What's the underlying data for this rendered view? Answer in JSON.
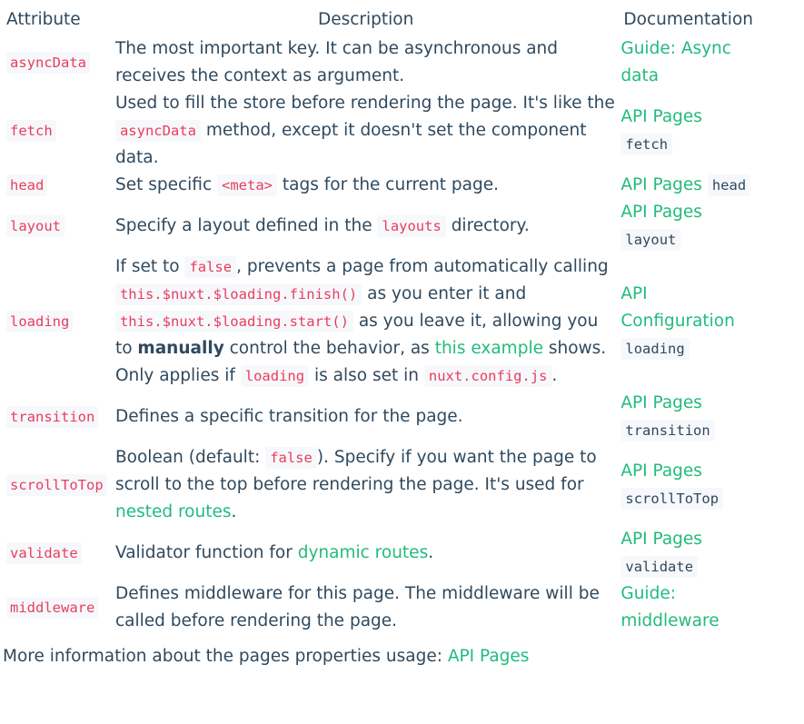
{
  "table": {
    "headers": {
      "attribute": "Attribute",
      "description": "Description",
      "documentation": "Documentation"
    },
    "rows": [
      {
        "attr": "asyncData",
        "desc": [
          {
            "t": "The most important key. It can be asynchronous and receives the context as argument."
          }
        ],
        "doc": [
          {
            "link": "Guide: Async data"
          }
        ]
      },
      {
        "attr": "fetch",
        "desc": [
          {
            "t": "Used to fill the store before rendering the page. It's like the "
          },
          {
            "code": "asyncData"
          },
          {
            "t": " method, except it doesn't set the component data."
          }
        ],
        "doc": [
          {
            "link": "API Pages"
          },
          {
            "code": "fetch"
          }
        ]
      },
      {
        "attr": "head",
        "desc": [
          {
            "t": "Set specific "
          },
          {
            "code": "<meta>"
          },
          {
            "t": " tags for the current page."
          }
        ],
        "doc": [
          {
            "link": "API Pages"
          },
          {
            "code": "head"
          }
        ]
      },
      {
        "attr": "layout",
        "desc": [
          {
            "t": "Specify a layout defined in the "
          },
          {
            "code": "layouts"
          },
          {
            "t": " directory."
          }
        ],
        "doc": [
          {
            "link": "API Pages"
          },
          {
            "code": "layout"
          }
        ]
      },
      {
        "attr": "loading",
        "desc": [
          {
            "t": "If set to "
          },
          {
            "code": "false"
          },
          {
            "t": ", prevents a page from automatically calling "
          },
          {
            "code": "this.$nuxt.$loading.finish()"
          },
          {
            "t": " as you enter it and "
          },
          {
            "code": "this.$nuxt.$loading.start()"
          },
          {
            "t": " as you leave it, allowing you to "
          },
          {
            "bold": "manually"
          },
          {
            "t": " control the behavior, as "
          },
          {
            "link": "this example"
          },
          {
            "t": " shows. Only applies if "
          },
          {
            "code": "loading"
          },
          {
            "t": " is also set in "
          },
          {
            "code": "nuxt.config.js"
          },
          {
            "t": "."
          }
        ],
        "doc": [
          {
            "link": "API Configuration"
          },
          {
            "code": "loading"
          }
        ]
      },
      {
        "attr": "transition",
        "desc": [
          {
            "t": "Defines a specific transition for the page."
          }
        ],
        "doc": [
          {
            "link": "API Pages"
          },
          {
            "code": "transition"
          }
        ]
      },
      {
        "attr": "scrollToTop",
        "desc": [
          {
            "t": "Boolean (default: "
          },
          {
            "code": "false"
          },
          {
            "t": "). Specify if you want the page to scroll to the top before rendering the page. It's used for "
          },
          {
            "link": "nested routes"
          },
          {
            "t": "."
          }
        ],
        "doc": [
          {
            "link": "API Pages"
          },
          {
            "code": "scrollToTop"
          }
        ]
      },
      {
        "attr": "validate",
        "desc": [
          {
            "t": "Validator function for "
          },
          {
            "link": "dynamic routes"
          },
          {
            "t": "."
          }
        ],
        "doc": [
          {
            "link": "API Pages"
          },
          {
            "code": "validate"
          }
        ]
      },
      {
        "attr": "middleware",
        "desc": [
          {
            "t": "Defines middleware for this page. The middleware will be called before rendering the page."
          }
        ],
        "doc": [
          {
            "link": "Guide: middleware"
          }
        ]
      }
    ]
  },
  "footer": {
    "text": "More information about the pages properties usage: ",
    "link": "API Pages"
  }
}
